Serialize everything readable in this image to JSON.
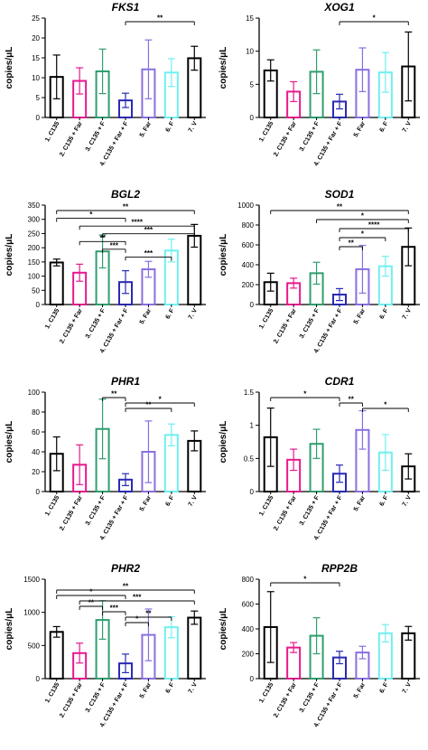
{
  "chart_data": [
    {
      "type": "bar",
      "title": "FKS1",
      "ylabel": "copies/μL",
      "categories": [
        "1. C135",
        "2. C135 + Far",
        "3. C135 + F",
        "4. C135 + Far + F",
        "5. Far",
        "6. F",
        "7. V"
      ],
      "values": [
        10.2,
        9.2,
        11.6,
        4.3,
        12.1,
        11.3,
        14.9
      ],
      "errors": [
        5.5,
        3.3,
        5.6,
        1.8,
        7.4,
        3.5,
        3.0
      ],
      "colors": [
        "#000000",
        "#e6198e",
        "#2e9e6e",
        "#2a2ab4",
        "#8a6fe0",
        "#6ff0f0",
        "#000000"
      ],
      "ylim": [
        0,
        25
      ],
      "yticks": [
        0,
        5,
        10,
        15,
        20,
        25
      ],
      "significance": [
        {
          "from": 4,
          "to": 7,
          "label": "**"
        }
      ]
    },
    {
      "type": "bar",
      "title": "XOG1",
      "ylabel": "copies/μL",
      "categories": [
        "1. C135",
        "2. C135 + Far",
        "3. C135 + F",
        "4. C135 + Far + F",
        "5. Far",
        "6. F",
        "7. V"
      ],
      "values": [
        7.1,
        3.9,
        6.9,
        2.4,
        7.2,
        6.8,
        7.7
      ],
      "errors": [
        1.6,
        1.5,
        3.3,
        1.1,
        3.3,
        3.0,
        5.2
      ],
      "colors": [
        "#000000",
        "#e6198e",
        "#2e9e6e",
        "#2a2ab4",
        "#8a6fe0",
        "#6ff0f0",
        "#000000"
      ],
      "ylim": [
        0,
        15
      ],
      "yticks": [
        0,
        5,
        10,
        15
      ],
      "significance": [
        {
          "from": 4,
          "to": 7,
          "label": "*"
        }
      ]
    },
    {
      "type": "bar",
      "title": "BGL2",
      "ylabel": "copies/μL",
      "categories": [
        "1. C135",
        "2. C135 + Far",
        "3. C135 + F",
        "4. C135 + Far + F",
        "5. Far",
        "6. F",
        "7. V"
      ],
      "values": [
        148,
        112,
        187,
        79,
        124,
        190,
        242
      ],
      "errors": [
        12,
        30,
        58,
        40,
        28,
        40,
        40
      ],
      "colors": [
        "#000000",
        "#e6198e",
        "#2e9e6e",
        "#2a2ab4",
        "#8a6fe0",
        "#6ff0f0",
        "#000000"
      ],
      "ylim": [
        0,
        350
      ],
      "yticks": [
        0,
        50,
        100,
        150,
        200,
        250,
        300,
        350
      ],
      "significance": [
        {
          "from": 1,
          "to": 7,
          "label": "**"
        },
        {
          "from": 1,
          "to": 4,
          "label": "*"
        },
        {
          "from": 2,
          "to": 7,
          "label": "****"
        },
        {
          "from": 3,
          "to": 7,
          "label": "***"
        },
        {
          "from": 2,
          "to": 4,
          "label": "**"
        },
        {
          "from": 3,
          "to": 4,
          "label": "***"
        },
        {
          "from": 4,
          "to": 6,
          "label": "***"
        }
      ]
    },
    {
      "type": "bar",
      "title": "SOD1",
      "ylabel": "copies/μL",
      "categories": [
        "1. C135",
        "2. C135 + Far",
        "3. C135 + F",
        "4. C135 + Far + F",
        "5. Far",
        "6. F",
        "7. V"
      ],
      "values": [
        225,
        215,
        315,
        100,
        355,
        385,
        580
      ],
      "errors": [
        90,
        50,
        110,
        60,
        240,
        100,
        190
      ],
      "colors": [
        "#000000",
        "#e6198e",
        "#2e9e6e",
        "#2a2ab4",
        "#8a6fe0",
        "#6ff0f0",
        "#000000"
      ],
      "ylim": [
        0,
        1000
      ],
      "yticks": [
        0,
        200,
        400,
        600,
        800,
        1000
      ],
      "significance": [
        {
          "from": 1,
          "to": 7,
          "label": "**"
        },
        {
          "from": 3,
          "to": 7,
          "label": "*"
        },
        {
          "from": 4,
          "to": 7,
          "label": "****"
        },
        {
          "from": 4,
          "to": 6,
          "label": "*"
        },
        {
          "from": 4,
          "to": 5,
          "label": "**"
        }
      ]
    },
    {
      "type": "bar",
      "title": "PHR1",
      "ylabel": "copies/μL",
      "categories": [
        "1. C135",
        "2. C135 + Far",
        "3. C135 + F",
        "4. C135 + Far + F",
        "5. Far",
        "6. F",
        "7. V"
      ],
      "values": [
        38,
        27,
        63,
        12,
        40,
        57,
        51
      ],
      "errors": [
        17,
        20,
        30,
        6,
        31,
        11,
        10
      ],
      "colors": [
        "#000000",
        "#e6198e",
        "#2e9e6e",
        "#2a2ab4",
        "#8a6fe0",
        "#6ff0f0",
        "#000000"
      ],
      "ylim": [
        0,
        100
      ],
      "yticks": [
        0,
        20,
        40,
        60,
        80,
        100
      ],
      "significance": [
        {
          "from": 3,
          "to": 4,
          "label": "**"
        },
        {
          "from": 4,
          "to": 7,
          "label": "*"
        },
        {
          "from": 4,
          "to": 6,
          "label": "**"
        }
      ]
    },
    {
      "type": "bar",
      "title": "CDR1",
      "ylabel": "copies/μL",
      "categories": [
        "1. C135",
        "2. C135 + Far",
        "3. C135 + F",
        "4. C135 + Far + F",
        "5. Far",
        "6. F",
        "7. V"
      ],
      "values": [
        0.82,
        0.48,
        0.72,
        0.27,
        0.93,
        0.59,
        0.38
      ],
      "errors": [
        0.44,
        0.16,
        0.22,
        0.13,
        0.29,
        0.27,
        0.19
      ],
      "colors": [
        "#000000",
        "#e6198e",
        "#2e9e6e",
        "#2a2ab4",
        "#8a6fe0",
        "#6ff0f0",
        "#000000"
      ],
      "ylim": [
        0,
        1.5
      ],
      "yticks": [
        0,
        0.5,
        1.0,
        1.5
      ],
      "significance": [
        {
          "from": 1,
          "to": 4,
          "label": "*"
        },
        {
          "from": 4,
          "to": 5,
          "label": "**"
        },
        {
          "from": 5,
          "to": 7,
          "label": "*"
        }
      ]
    },
    {
      "type": "bar",
      "title": "PHR2",
      "ylabel": "copies/μL",
      "categories": [
        "1. C135",
        "2. C135 + Far",
        "3. C135 + F",
        "4. C135 + Far + F",
        "5. Far",
        "6. F",
        "7. V"
      ],
      "values": [
        705,
        385,
        885,
        230,
        660,
        775,
        920
      ],
      "errors": [
        80,
        150,
        290,
        140,
        390,
        160,
        100
      ],
      "colors": [
        "#000000",
        "#e6198e",
        "#2e9e6e",
        "#2a2ab4",
        "#8a6fe0",
        "#6ff0f0",
        "#000000"
      ],
      "ylim": [
        0,
        1500
      ],
      "yticks": [
        0,
        500,
        1000,
        1500
      ],
      "significance": [
        {
          "from": 1,
          "to": 7,
          "label": "**"
        },
        {
          "from": 1,
          "to": 4,
          "label": "*"
        },
        {
          "from": 2,
          "to": 7,
          "label": "***"
        },
        {
          "from": 2,
          "to": 3,
          "label": "**"
        },
        {
          "from": 3,
          "to": 4,
          "label": "***"
        },
        {
          "from": 4,
          "to": 6,
          "label": "**"
        },
        {
          "from": 4,
          "to": 5,
          "label": "*"
        }
      ]
    },
    {
      "type": "bar",
      "title": "RPP2B",
      "ylabel": "copies/μL",
      "categories": [
        "1. C135",
        "2. C135 + Far",
        "3. C135 + F",
        "4. C135 + Far + F",
        "5. Far",
        "6. F",
        "7. V"
      ],
      "values": [
        415,
        250,
        345,
        170,
        210,
        365,
        365
      ],
      "errors": [
        285,
        40,
        145,
        50,
        50,
        70,
        55
      ],
      "colors": [
        "#000000",
        "#e6198e",
        "#2e9e6e",
        "#2a2ab4",
        "#8a6fe0",
        "#6ff0f0",
        "#000000"
      ],
      "ylim": [
        0,
        800
      ],
      "yticks": [
        0,
        200,
        400,
        600,
        800
      ],
      "significance": [
        {
          "from": 1,
          "to": 4,
          "label": "*"
        }
      ]
    }
  ]
}
